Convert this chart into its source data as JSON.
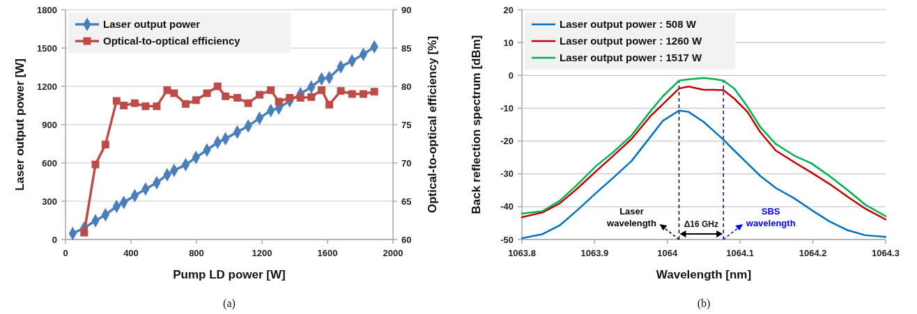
{
  "chart_data": [
    {
      "type": "line",
      "xlabel": "Pump LD power [W]",
      "ylabel": "Laser output power [W]",
      "y2label": "Optical-to-optical efficiency [%]",
      "xlim": [
        0,
        2000
      ],
      "xticks": [
        0,
        400,
        800,
        1200,
        1600,
        2000
      ],
      "ylim": [
        0,
        1800
      ],
      "yticks": [
        0,
        300,
        600,
        900,
        1200,
        1500,
        1800
      ],
      "y2lim": [
        60,
        90
      ],
      "y2ticks": [
        60,
        65,
        70,
        75,
        80,
        85,
        90
      ],
      "grid": "y",
      "legend": "top left",
      "annotations": [
        "(a)"
      ],
      "series": [
        {
          "name": "Laser output power",
          "color": "#4a7ebb",
          "marker": "diamond",
          "x": [
            44,
            114,
            183,
            244,
            312,
            356,
            423,
            489,
            557,
            621,
            663,
            734,
            797,
            864,
            929,
            977,
            1049,
            1116,
            1185,
            1254,
            1303,
            1369,
            1435,
            1501,
            1564,
            1611,
            1681,
            1750,
            1819,
            1886
          ],
          "values": [
            47,
            90,
            147,
            194,
            259,
            291,
            344,
            395,
            445,
            507,
            541,
            586,
            643,
            701,
            761,
            789,
            842,
            889,
            951,
            1011,
            1030,
            1086,
            1142,
            1195,
            1259,
            1268,
            1353,
            1400,
            1451,
            1509
          ]
        },
        {
          "name": "Optical-to-optical efficiency",
          "color": "#be4b48",
          "marker": "square",
          "axis": "y2",
          "x": [
            114,
            183,
            244,
            312,
            356,
            423,
            489,
            557,
            621,
            663,
            734,
            797,
            864,
            929,
            977,
            1049,
            1116,
            1185,
            1254,
            1303,
            1369,
            1435,
            1501,
            1564,
            1611,
            1681,
            1750,
            1819,
            1886
          ],
          "values": [
            60.9,
            69.8,
            72.4,
            78.1,
            77.5,
            77.8,
            77.4,
            77.4,
            79.5,
            79.1,
            77.7,
            78.2,
            79.1,
            80.0,
            78.7,
            78.5,
            77.8,
            78.9,
            79.5,
            78.0,
            78.5,
            78.5,
            78.6,
            79.5,
            77.6,
            79.4,
            79.0,
            79.0,
            79.3
          ]
        }
      ]
    },
    {
      "type": "line",
      "xlabel": "Wavelength [nm]",
      "ylabel": "Back reflection spectrum [dBm]",
      "xlim": [
        1063.8,
        1064.3
      ],
      "xticks": [
        1063.8,
        1063.9,
        1064,
        1064.1,
        1064.2,
        1064.3
      ],
      "ylim": [
        -50,
        20
      ],
      "yticks": [
        -50,
        -40,
        -30,
        -20,
        -10,
        0,
        10,
        20
      ],
      "grid": "y",
      "legend": "top left",
      "x": [
        1063.8,
        1063.828,
        1063.852,
        1063.877,
        1063.902,
        1063.926,
        1063.951,
        1063.976,
        1063.994,
        1064.016,
        1064.029,
        1064.05,
        1064.064,
        1064.077,
        1064.092,
        1064.11,
        1064.128,
        1064.149,
        1064.174,
        1064.198,
        1064.223,
        1064.248,
        1064.272,
        1064.3
      ],
      "ref_lines": [
        {
          "axis": "x",
          "value": 1064.016,
          "label": "Laser wavelength",
          "color": "#000000",
          "line_style": "dashed"
        },
        {
          "axis": "x",
          "value": 1064.077,
          "label": "SBS wavelength",
          "color": "#0000ff",
          "line_style": "dashed"
        }
      ],
      "annotations": [
        "Δ16 GHz",
        "(b)"
      ],
      "series": [
        {
          "name": "Laser output power : 508 W",
          "color": "#0070c0",
          "values": [
            -49.6,
            -48.4,
            -45.7,
            -40.9,
            -35.8,
            -31.1,
            -26.0,
            -18.9,
            -13.8,
            -10.7,
            -11.1,
            -14.2,
            -17.0,
            -19.6,
            -22.9,
            -26.8,
            -30.7,
            -34.3,
            -37.4,
            -41.0,
            -44.5,
            -47.2,
            -48.7,
            -49.2
          ]
        },
        {
          "name": "Laser output power : 1260 W",
          "color": "#c00000",
          "values": [
            -43.2,
            -41.8,
            -39.0,
            -34.3,
            -29.2,
            -24.4,
            -19.3,
            -12.6,
            -8.7,
            -4.0,
            -3.4,
            -4.4,
            -4.4,
            -4.5,
            -7.1,
            -11.1,
            -17.4,
            -22.9,
            -26.4,
            -29.6,
            -33.1,
            -37.0,
            -40.6,
            -43.9
          ]
        },
        {
          "name": "Laser output power : 1517 W",
          "color": "#00b050",
          "values": [
            -42.1,
            -41.4,
            -38.2,
            -33.1,
            -27.6,
            -23.3,
            -18.2,
            -11.1,
            -6.3,
            -1.6,
            -1.2,
            -0.8,
            -1.1,
            -1.6,
            -4.0,
            -9.5,
            -15.8,
            -20.9,
            -24.4,
            -26.8,
            -30.7,
            -35.0,
            -39.4,
            -42.9
          ]
        }
      ]
    }
  ]
}
